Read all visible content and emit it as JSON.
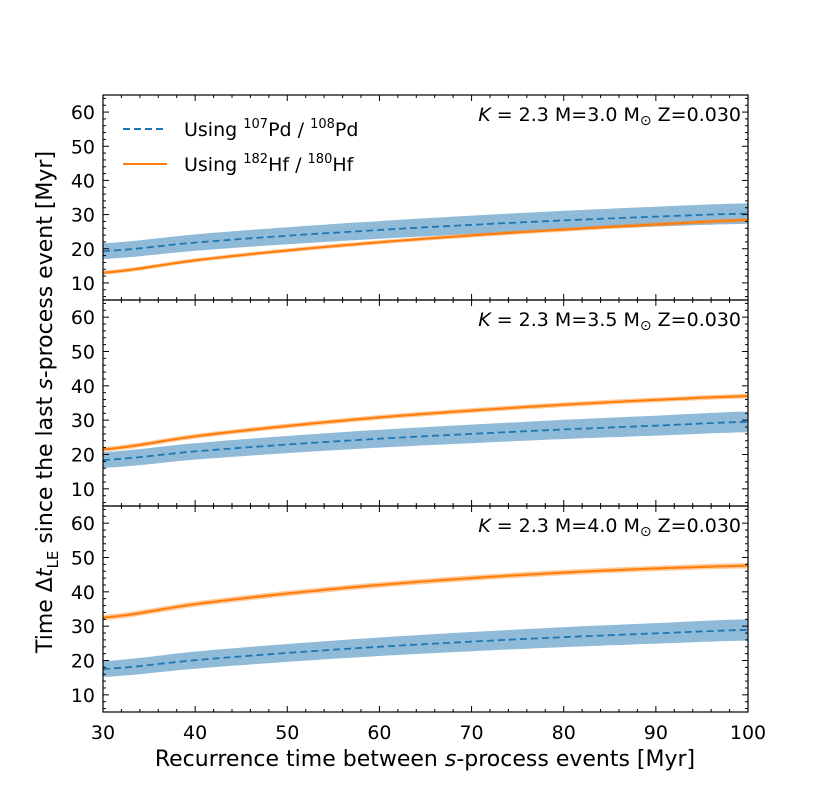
{
  "chart_data": {
    "type": "line",
    "xlabel": {
      "prefix": "Recurrence time between ",
      "italic": "s",
      "suffix": "-process events [Myr]"
    },
    "ylabel": {
      "prefix": "Time Δ",
      "italic": "t",
      "subscript": "LE",
      "suffix": " since the last ",
      "italic2": "s",
      "suffix2": "-process event [Myr]"
    },
    "xlim": [
      30,
      100
    ],
    "ylim": [
      5,
      65
    ],
    "xticks": [
      "30",
      "40",
      "50",
      "60",
      "70",
      "80",
      "90",
      "100"
    ],
    "yticks": [
      "10",
      "20",
      "30",
      "40",
      "50",
      "60"
    ],
    "legend": {
      "location": "top-left",
      "entries": [
        {
          "prefix": "Using ",
          "sup1": "107",
          "el1": "Pd / ",
          "sup2": "108",
          "el2": "Pd",
          "style": "dashed",
          "color": "#1f77b4"
        },
        {
          "prefix": "Using ",
          "sup1": "182",
          "el1": "Hf / ",
          "sup2": "180",
          "el2": "Hf",
          "style": "solid",
          "color": "#ff7f0e"
        }
      ]
    },
    "colors": {
      "pd_line": "#1f77b4",
      "pd_band": "#1f77b4",
      "hf_line": "#ff7f0e",
      "hf_band": "#ff7f0e"
    },
    "x": [
      30,
      40,
      50,
      60,
      70,
      80,
      90,
      100
    ],
    "panels": [
      {
        "annotation": {
          "k_label": "K",
          "k_value": " = 2.3",
          "mass": " M=3.0 M",
          "sun": "⊙",
          "metal": "  Z=0.030"
        },
        "series": [
          {
            "name": "Using 107Pd / 108Pd",
            "values": [
              19.3,
              21.8,
              23.8,
              25.5,
              27.0,
              28.3,
              29.4,
              30.3
            ],
            "band_halfwidth": [
              2.3,
              2.4,
              2.5,
              2.6,
              2.7,
              2.8,
              2.9,
              3.0
            ]
          },
          {
            "name": "Using 182Hf / 180Hf",
            "values": [
              13.0,
              16.6,
              19.5,
              21.9,
              23.9,
              25.6,
              27.1,
              28.4
            ],
            "band_halfwidth": [
              0.6,
              0.6,
              0.6,
              0.6,
              0.6,
              0.6,
              0.6,
              0.6
            ]
          }
        ]
      },
      {
        "annotation": {
          "k_label": "K",
          "k_value": " = 2.3",
          "mass": " M=3.5 M",
          "sun": "⊙",
          "metal": "  Z=0.030"
        },
        "series": [
          {
            "name": "Using 107Pd / 108Pd",
            "values": [
              18.4,
              20.9,
              22.9,
              24.6,
              26.0,
              27.3,
              28.4,
              29.5
            ],
            "band_halfwidth": [
              2.3,
              2.4,
              2.5,
              2.6,
              2.7,
              2.8,
              2.9,
              3.0
            ]
          },
          {
            "name": "Using 182Hf / 180Hf",
            "values": [
              21.5,
              25.3,
              28.3,
              30.8,
              32.8,
              34.5,
              35.9,
              37.0
            ],
            "band_halfwidth": [
              0.7,
              0.7,
              0.7,
              0.7,
              0.7,
              0.7,
              0.7,
              0.7
            ]
          }
        ]
      },
      {
        "annotation": {
          "k_label": "K",
          "k_value": " = 2.3",
          "mass": " M=4.0 M",
          "sun": "⊙",
          "metal": "  Z=0.030"
        },
        "series": [
          {
            "name": "Using 107Pd / 108Pd",
            "values": [
              17.5,
              20.1,
              22.2,
              24.0,
              25.5,
              26.8,
              27.9,
              28.9
            ],
            "band_halfwidth": [
              2.3,
              2.5,
              2.6,
              2.7,
              2.8,
              2.9,
              3.0,
              3.1
            ]
          },
          {
            "name": "Using 182Hf / 180Hf",
            "values": [
              32.5,
              36.4,
              39.5,
              42.0,
              44.0,
              45.6,
              46.8,
              47.6
            ],
            "band_halfwidth": [
              0.8,
              0.8,
              0.8,
              0.8,
              0.8,
              0.8,
              0.8,
              0.8
            ]
          }
        ]
      }
    ]
  }
}
